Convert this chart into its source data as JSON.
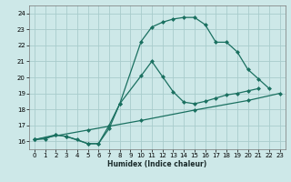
{
  "xlabel": "Humidex (Indice chaleur)",
  "background_color": "#cde8e8",
  "grid_color": "#a8cccc",
  "line_color": "#1a7060",
  "xlim": [
    -0.5,
    23.5
  ],
  "ylim": [
    15.5,
    24.5
  ],
  "xticks": [
    0,
    1,
    2,
    3,
    4,
    5,
    6,
    7,
    8,
    9,
    10,
    11,
    12,
    13,
    14,
    15,
    16,
    17,
    18,
    19,
    20,
    21,
    22,
    23
  ],
  "yticks": [
    16,
    17,
    18,
    19,
    20,
    21,
    22,
    23,
    24
  ],
  "line1_x": [
    0,
    1,
    2,
    3,
    4,
    5,
    6,
    7,
    8,
    10,
    11,
    12,
    13,
    14,
    15,
    16,
    17,
    18,
    19,
    20,
    21,
    22,
    23
  ],
  "line1_y": [
    16.1,
    16.15,
    16.4,
    16.3,
    16.1,
    15.85,
    15.85,
    16.8,
    18.35,
    22.25,
    23.15,
    23.45,
    23.65,
    23.75,
    23.75,
    23.3,
    22.2,
    22.2,
    21.6,
    20.5,
    19.9,
    19.3,
    null
  ],
  "line2_x": [
    0,
    2,
    3,
    5,
    6,
    7,
    8,
    10,
    11,
    12,
    13,
    14,
    15,
    16,
    17,
    18,
    19,
    20,
    21,
    22,
    23
  ],
  "line2_y": [
    16.1,
    16.4,
    16.3,
    15.85,
    15.85,
    17.0,
    18.35,
    20.1,
    21.0,
    20.05,
    19.1,
    18.45,
    18.35,
    18.5,
    18.7,
    18.9,
    19.0,
    19.15,
    19.3,
    null,
    null
  ],
  "line3_x": [
    0,
    5,
    10,
    15,
    20,
    23
  ],
  "line3_y": [
    16.1,
    16.7,
    17.3,
    17.95,
    18.55,
    19.0
  ]
}
